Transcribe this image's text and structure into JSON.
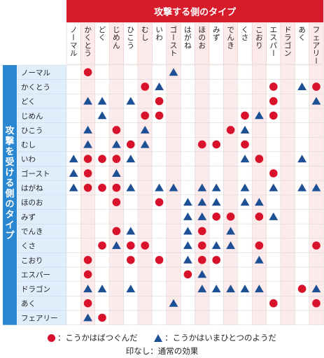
{
  "chart_data": {
    "type": "table",
    "title": "",
    "column_header": "攻撃する側のタイプ",
    "row_header": "攻撃を受ける側のタイプ",
    "types": [
      "ノーマル",
      "かくとう",
      "どく",
      "じめん",
      "ひこう",
      "むし",
      "いわ",
      "ゴースト",
      "はがね",
      "ほのお",
      "みず",
      "でんき",
      "くさ",
      "こおり",
      "エスパー",
      "ドラゴン",
      "あく",
      "フェアリー"
    ],
    "marks": [
      "-C-----T----------",
      "-----CT-------C-TC",
      "-TT-T-C-------C--T",
      "--T--CC-----CTC---",
      "-T-C-T-----CT-----",
      "-T-TCT---CC-C-----",
      "TCCCT-------TC--T-",
      "TC-T----------C---",
      "TCCCT-TT-TT-T-T-TT",
      "---C--C-TTT-TT----",
      "--------TTCC-CT---",
      "---CT---TC-T------",
      "--CTCC--TCTT-C---C",
      "-C--C-C-TCC--T----",
      "-C------CT--------",
      "-TT-T----TTTTT--CT",
      "-C-----T------C--C",
      "-TC---------------"
    ],
    "legend": {
      "circle": "：こうかはばつぐんだ",
      "triangle": "：こうかはいまひとつのようだ",
      "none": "印なし：通常の効果"
    },
    "colors": {
      "circle": "#d9122c",
      "triangle": "#1c4f94",
      "header": "#d61c2a",
      "side": "#2b87cf",
      "row_label": "#e0eefb"
    }
  }
}
